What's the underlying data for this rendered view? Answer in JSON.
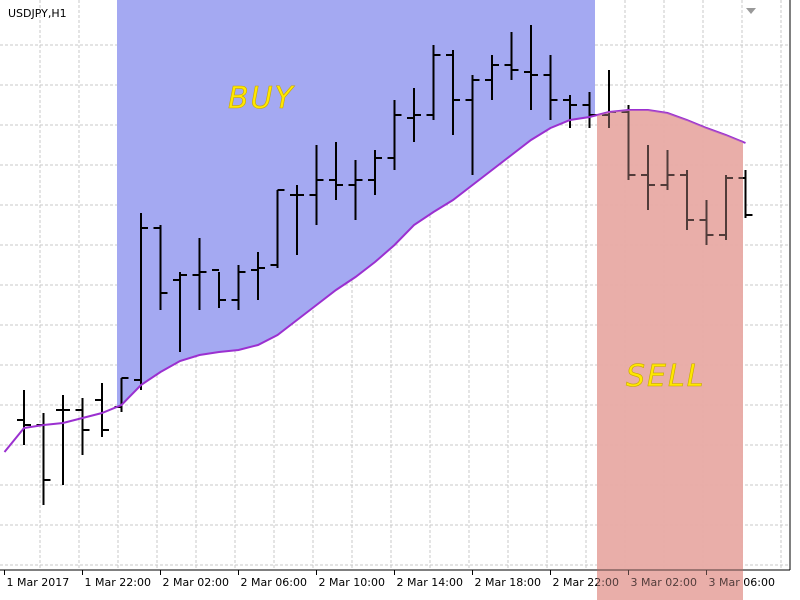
{
  "chart_data": {
    "type": "ohlc",
    "title": "USDJPY,H1",
    "categories": [
      "1 Mar 2017",
      null,
      null,
      null,
      "1 Mar 22:00",
      null,
      null,
      null,
      "2 Mar 02:00",
      null,
      null,
      null,
      "2 Mar 06:00",
      null,
      null,
      null,
      "2 Mar 10:00",
      null,
      null,
      null,
      "2 Mar 14:00",
      null,
      null,
      null,
      "2 Mar 18:00",
      null,
      null,
      null,
      "2 Mar 22:00",
      null,
      null,
      null,
      "3 Mar 02:00",
      null,
      null,
      null,
      "3 Mar 06:00",
      null,
      null
    ],
    "open": [
      null,
      150,
      145,
      160,
      160,
      170,
      163,
      190,
      342,
      290,
      295,
      300,
      270,
      300,
      305,
      375,
      375,
      390,
      385,
      390,
      412,
      452,
      455,
      515,
      470,
      490,
      505,
      498,
      495,
      470,
      465,
      455,
      458,
      395,
      385,
      395,
      350,
      335,
      392
    ],
    "high": [
      null,
      180,
      157,
      175,
      172,
      187,
      192,
      357,
      345,
      298,
      332,
      298,
      305,
      318,
      380,
      385,
      425,
      428,
      410,
      420,
      470,
      482,
      525,
      520,
      495,
      515,
      538,
      545,
      515,
      475,
      478,
      500,
      465,
      425,
      420,
      400,
      370,
      395,
      400
    ],
    "low": [
      null,
      125,
      65,
      85,
      115,
      133,
      158,
      180,
      260,
      218,
      260,
      262,
      260,
      270,
      302,
      315,
      345,
      370,
      350,
      375,
      400,
      428,
      450,
      435,
      395,
      470,
      490,
      460,
      450,
      442,
      442,
      442,
      390,
      360,
      380,
      340,
      325,
      330,
      352
    ],
    "close": [
      null,
      145,
      90,
      160,
      140,
      140,
      192,
      342,
      277,
      295,
      298,
      270,
      298,
      302,
      380,
      375,
      390,
      385,
      390,
      412,
      455,
      455,
      515,
      470,
      490,
      505,
      500,
      495,
      470,
      465,
      455,
      458,
      395,
      385,
      395,
      350,
      335,
      392,
      355
    ],
    "ma": [
      118,
      142,
      145,
      147,
      152,
      157,
      165,
      185,
      198,
      209,
      215,
      218,
      220,
      225,
      235,
      250,
      265,
      280,
      293,
      308,
      325,
      345,
      358,
      370,
      385,
      400,
      415,
      430,
      442,
      450,
      453,
      458,
      460,
      460,
      457,
      450,
      442,
      435,
      427
    ],
    "bar_color": "#000000",
    "ma_color": "#9b30d0",
    "zones": [
      {
        "label": "BUY",
        "color": "#a4a9f2"
      },
      {
        "label": "SELL",
        "color": "#e9aba6"
      }
    ],
    "ylim": [
      0,
      570
    ],
    "grid": true
  }
}
